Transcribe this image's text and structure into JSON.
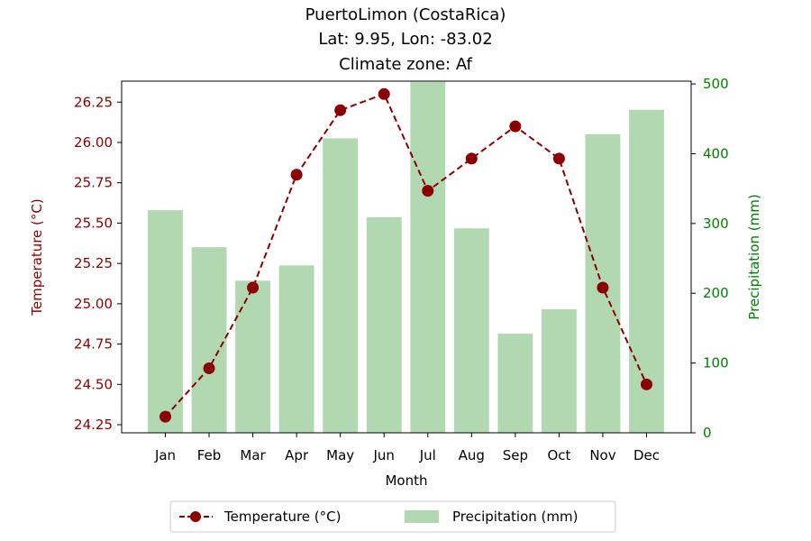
{
  "chart_data": {
    "type": "bar+line",
    "title_lines": [
      "PuertoLimon (CostaRica)",
      "Lat: 9.95, Lon: -83.02",
      "Climate zone: Af"
    ],
    "xlabel": "Month",
    "ylabel_left": "Temperature (°C)",
    "ylabel_right": "Precipitation (mm)",
    "categories": [
      "Jan",
      "Feb",
      "Mar",
      "Apr",
      "May",
      "Jun",
      "Jul",
      "Aug",
      "Sep",
      "Oct",
      "Nov",
      "Dec"
    ],
    "series": [
      {
        "name": "Temperature (°C)",
        "type": "line",
        "axis": "left",
        "values": [
          24.3,
          24.6,
          25.1,
          25.8,
          26.2,
          26.3,
          25.7,
          25.9,
          26.1,
          25.9,
          25.1,
          24.5
        ]
      },
      {
        "name": "Precipitation (mm)",
        "type": "bar",
        "axis": "right",
        "values": [
          319,
          266,
          218,
          240,
          422,
          309,
          503,
          293,
          142,
          177,
          428,
          463
        ]
      }
    ],
    "ylim_left": [
      24.2,
      26.38
    ],
    "yticks_left": [
      "24.25",
      "24.50",
      "24.75",
      "25.00",
      "25.25",
      "25.50",
      "25.75",
      "26.00",
      "26.25"
    ],
    "ylim_right": [
      0,
      504
    ],
    "yticks_right": [
      "0",
      "100",
      "200",
      "300",
      "400",
      "500"
    ],
    "grid": false,
    "legend_position": "bottom-center",
    "colors": {
      "temperature": "#8b0000",
      "precipitation": "#b2d8b2",
      "left_axis": "#8b0000",
      "right_axis": "#008000"
    }
  }
}
